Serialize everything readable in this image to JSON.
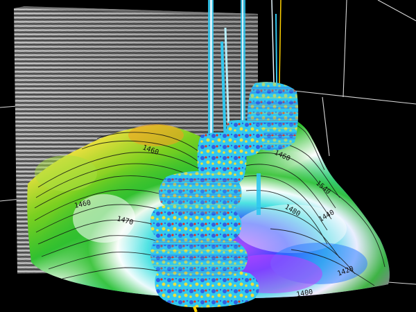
{
  "viewer": {
    "background": "#000000",
    "axis_color": "#d8d8d8",
    "seismic_colors": [
      "#e6e6e6",
      "#3a3a3a"
    ],
    "surface_colors": [
      "#f0a020",
      "#f0e040",
      "#7ad020",
      "#30c030",
      "#ffffff",
      "#40e0e0",
      "#3080ff",
      "#3040ff",
      "#c040ff",
      "#ff40d0"
    ],
    "well_log_colors": [
      "#30c8f0",
      "#3060e0",
      "#e8e040",
      "#e03020"
    ],
    "well_path_color": "#ffd000"
  },
  "contour_labels": [
    "1470",
    "1460",
    "1460",
    "1480",
    "1440",
    "1420",
    "1400",
    "1460",
    "1540"
  ]
}
